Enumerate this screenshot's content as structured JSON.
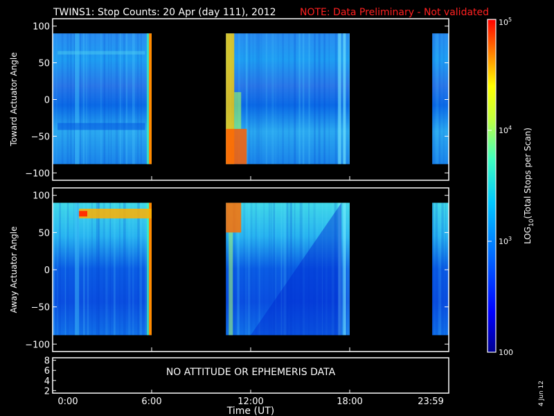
{
  "title": "TWINS1: Stop Counts: 20 Apr (day 111), 2012",
  "note": "NOTE: Data Preliminary - Not validated",
  "date_stamp": "4 Jun 12",
  "colors": {
    "note": "#ff2020",
    "frame": "#ffffff",
    "background": "#000000"
  },
  "chart_data": [
    {
      "type": "heatmap",
      "panel": "toward",
      "ylabel": "Toward Actuator Angle",
      "ylim": [
        -110,
        110
      ],
      "yticks": [
        "100",
        "50",
        "0",
        "−50",
        "−100"
      ],
      "ytick_values": [
        100,
        50,
        0,
        -50,
        -100
      ],
      "data_y_range": [
        -88,
        90
      ],
      "xlim": [
        0,
        24
      ],
      "data_intervals_hours": [
        [
          0,
          6
        ],
        [
          10.5,
          18
        ],
        [
          23,
          24
        ]
      ],
      "z_description": "LOG10(Total Stops per Scan), mostly ~10^3 with enhancements near 6:00 and 10:30-11:00"
    },
    {
      "type": "heatmap",
      "panel": "away",
      "ylabel": "Away Actuator Angle",
      "ylim": [
        -110,
        110
      ],
      "yticks": [
        "100",
        "50",
        "0",
        "−50",
        "−100"
      ],
      "ytick_values": [
        100,
        50,
        0,
        -50,
        -100
      ],
      "data_y_range": [
        -88,
        90
      ],
      "xlim": [
        0,
        24
      ],
      "data_intervals_hours": [
        [
          0,
          6
        ],
        [
          10.5,
          18
        ],
        [
          23,
          24
        ]
      ],
      "z_description": "LOG10(Total Stops per Scan), enhanced band near +75 deg from 1:30 to 6:00"
    },
    {
      "type": "table",
      "panel": "attitude",
      "ylim": [
        1.5,
        8.5
      ],
      "yticks": [
        "8",
        "6",
        "4",
        "2"
      ],
      "ytick_values": [
        8,
        6,
        4,
        2
      ],
      "message": "NO ATTITUDE OR EPHEMERIS DATA",
      "xticks": [
        "0:00",
        "6:00",
        "12:00",
        "18:00",
        "23:59"
      ],
      "xtick_values": [
        0,
        6,
        12,
        18,
        24
      ],
      "xlabel": "Time (UT)"
    }
  ],
  "colorbar": {
    "label_prefix": "LOG",
    "label_sub": "10",
    "label_suffix": "(Total Stops per Scan)",
    "scale": "log",
    "range": [
      100,
      100000
    ],
    "ticks": [
      {
        "value": 100,
        "base": "100",
        "exp": ""
      },
      {
        "value": 1000,
        "base": "10",
        "exp": "3"
      },
      {
        "value": 10000,
        "base": "10",
        "exp": "4"
      },
      {
        "value": 100000,
        "base": "10",
        "exp": "5"
      }
    ]
  }
}
